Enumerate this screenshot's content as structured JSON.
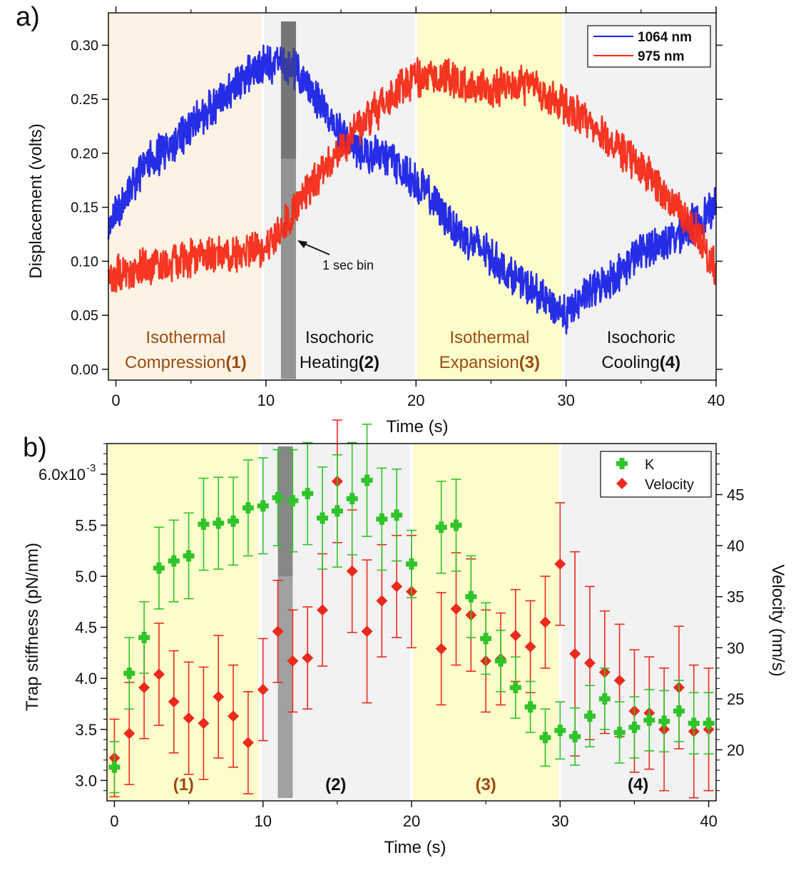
{
  "chart_data": [
    {
      "panel_label": "a)",
      "type": "line",
      "xlabel": "Time (s)",
      "ylabel": "Displacement (volts)",
      "xlim": [
        -0.5,
        40
      ],
      "ylim": [
        -0.01,
        0.33
      ],
      "xticks": [
        0,
        10,
        20,
        30,
        40
      ],
      "xtick_labels": [
        "0",
        "10",
        "20",
        "30",
        "40"
      ],
      "yticks": [
        0.0,
        0.05,
        0.1,
        0.15,
        0.2,
        0.25,
        0.3
      ],
      "ytick_labels": [
        "0.00",
        "0.05",
        "0.10",
        "0.15",
        "0.20",
        "0.25",
        "0.30"
      ],
      "phases": [
        {
          "x0": -0.5,
          "x1": 9.8,
          "color": "#fdf3e4",
          "line1": "Isothermal",
          "line2": "Compression",
          "num": "(1)",
          "text_color": "#9a4c12"
        },
        {
          "x0": 9.8,
          "x1": 20.0,
          "color": "#f2f2f2",
          "line1": "Isochoric",
          "line2": "Heating",
          "num": "(2)",
          "text_color": "#111111"
        },
        {
          "x0": 20.0,
          "x1": 29.8,
          "color": "#fdfccb",
          "line1": "Isothermal",
          "line2": "Expansion",
          "num": "(3)",
          "text_color": "#9a4c12"
        },
        {
          "x0": 29.8,
          "x1": 40.0,
          "color": "#f2f2f2",
          "line1": "Isochoric",
          "line2": "Cooling",
          "num": "(4)",
          "text_color": "#111111"
        }
      ],
      "bin": {
        "x0": 11.0,
        "x1": 12.0,
        "label": "1 sec bin"
      },
      "series": [
        {
          "name": "1064 nm",
          "color": "#1a22e6",
          "x": [
            -0.5,
            1,
            2,
            3,
            4,
            5,
            6,
            7,
            8,
            9,
            10,
            11,
            12,
            13,
            14,
            15,
            16,
            17,
            18,
            19,
            20,
            21,
            22,
            23,
            24,
            25,
            26,
            27,
            28,
            29,
            30,
            31,
            32,
            33,
            34,
            35,
            36,
            37,
            38,
            39,
            40
          ],
          "y": [
            0.13,
            0.17,
            0.19,
            0.2,
            0.21,
            0.225,
            0.24,
            0.25,
            0.265,
            0.275,
            0.285,
            0.282,
            0.278,
            0.258,
            0.238,
            0.218,
            0.205,
            0.2,
            0.198,
            0.185,
            0.175,
            0.158,
            0.14,
            0.125,
            0.115,
            0.105,
            0.09,
            0.08,
            0.07,
            0.06,
            0.05,
            0.065,
            0.075,
            0.085,
            0.095,
            0.11,
            0.115,
            0.12,
            0.13,
            0.14,
            0.15
          ]
        },
        {
          "name": "975 nm",
          "color": "#f52a17",
          "x": [
            -0.5,
            1,
            2,
            3,
            4,
            5,
            6,
            7,
            8,
            9,
            10,
            11,
            12,
            13,
            14,
            15,
            16,
            17,
            18,
            19,
            20,
            21,
            22,
            23,
            24,
            25,
            26,
            27,
            28,
            29,
            30,
            31,
            32,
            33,
            34,
            35,
            36,
            37,
            38,
            39,
            40
          ],
          "y": [
            0.085,
            0.09,
            0.095,
            0.098,
            0.1,
            0.103,
            0.105,
            0.107,
            0.108,
            0.11,
            0.113,
            0.13,
            0.148,
            0.17,
            0.19,
            0.205,
            0.22,
            0.235,
            0.248,
            0.26,
            0.27,
            0.272,
            0.27,
            0.265,
            0.262,
            0.26,
            0.262,
            0.265,
            0.26,
            0.25,
            0.245,
            0.232,
            0.22,
            0.21,
            0.198,
            0.185,
            0.172,
            0.155,
            0.14,
            0.12,
            0.09
          ]
        }
      ]
    },
    {
      "panel_label": "b)",
      "type": "scatter",
      "xlabel": "Time (s)",
      "ylabel": "Trap stiffness (pN/nm)",
      "y2label": "Velocity (nm/s)",
      "xlim": [
        -0.5,
        40.5
      ],
      "ylim": [
        2.8,
        6.3
      ],
      "y2lim": [
        15,
        50
      ],
      "xticks": [
        0,
        10,
        20,
        30,
        40
      ],
      "xtick_labels": [
        "0",
        "10",
        "20",
        "30",
        "40"
      ],
      "yticks": [
        3.0,
        3.5,
        4.0,
        4.5,
        5.0,
        5.5,
        6.0
      ],
      "ytick_labels": [
        "3.0",
        "3.5",
        "4.0",
        "4.5",
        "5.0",
        "5.5",
        "6.0x10"
      ],
      "y_exponent": "-3",
      "y2ticks": [
        20,
        25,
        30,
        35,
        40,
        45
      ],
      "y2tick_labels": [
        "20",
        "25",
        "30",
        "35",
        "40",
        "45"
      ],
      "phases": [
        {
          "x0": -0.5,
          "x1": 9.8,
          "color": "#fdfccb",
          "label": "(1)",
          "text_color": "#9a4c12"
        },
        {
          "x0": 9.8,
          "x1": 20.0,
          "color": "#f2f2f2",
          "label": "(2)",
          "text_color": "#111111"
        },
        {
          "x0": 20.0,
          "x1": 30.0,
          "color": "#fdfccb",
          "label": "(3)",
          "text_color": "#9a4c12"
        },
        {
          "x0": 30.0,
          "x1": 40.5,
          "color": "#f2f2f2",
          "label": "(4)",
          "text_color": "#111111"
        }
      ],
      "bin": {
        "x0": 11.0,
        "x1": 12.0
      },
      "series": [
        {
          "name": "K",
          "color": "#2fc42a",
          "axis": "left",
          "x": [
            0,
            1,
            2,
            3,
            4,
            5,
            6,
            7,
            8,
            9,
            10,
            11,
            12,
            13,
            14,
            15,
            16,
            17,
            18,
            19,
            20,
            22,
            23,
            24,
            25,
            26,
            27,
            28,
            29,
            30,
            31,
            32,
            33,
            34,
            35,
            36,
            37,
            38,
            39,
            40
          ],
          "y": [
            3.13,
            4.05,
            4.4,
            5.08,
            5.15,
            5.2,
            5.51,
            5.52,
            5.54,
            5.67,
            5.69,
            5.77,
            5.74,
            5.81,
            5.57,
            5.64,
            5.76,
            5.94,
            5.56,
            5.6,
            5.12,
            5.48,
            5.5,
            4.8,
            4.39,
            4.17,
            3.91,
            3.72,
            3.42,
            3.49,
            3.43,
            3.63,
            3.8,
            3.47,
            3.52,
            3.59,
            3.58,
            3.68,
            3.56,
            3.56
          ],
          "err": [
            0.25,
            0.35,
            0.35,
            0.4,
            0.4,
            0.42,
            0.45,
            0.45,
            0.43,
            0.47,
            0.47,
            0.47,
            0.5,
            0.5,
            0.5,
            0.55,
            0.55,
            0.55,
            0.5,
            0.45,
            0.33,
            0.45,
            0.45,
            0.4,
            0.35,
            0.3,
            0.3,
            0.25,
            0.28,
            0.28,
            0.28,
            0.3,
            0.3,
            0.3,
            0.3,
            0.3,
            0.3,
            0.3,
            0.3,
            0.3
          ]
        },
        {
          "name": "Velocity",
          "color": "#ec2a1c",
          "axis": "right",
          "x": [
            0,
            1,
            2,
            3,
            4,
            5,
            6,
            7,
            8,
            9,
            10,
            11,
            12,
            13,
            14,
            15,
            16,
            17,
            18,
            19,
            20,
            22,
            23,
            24,
            25,
            26,
            27,
            28,
            29,
            30,
            31,
            32,
            33,
            34,
            35,
            36,
            37,
            38,
            39,
            40
          ],
          "y": [
            19.2,
            21.6,
            26.1,
            27.4,
            24.7,
            23.1,
            22.6,
            25.2,
            23.3,
            20.7,
            25.9,
            31.6,
            28.7,
            29.0,
            33.7,
            46.3,
            37.5,
            31.6,
            34.6,
            36.0,
            35.5,
            29.9,
            33.8,
            33.2,
            28.7,
            28.9,
            31.2,
            30.1,
            32.5,
            38.2,
            29.4,
            28.5,
            27.6,
            26.8,
            23.8,
            23.6,
            22.0,
            26.1,
            21.8,
            22.0
          ],
          "err": [
            3.8,
            5,
            5,
            5,
            5,
            5.5,
            5.5,
            6,
            5,
            5,
            5,
            5,
            5,
            5,
            5.5,
            6,
            6,
            7,
            5.5,
            5,
            5.5,
            5.5,
            5.5,
            5.5,
            5,
            4.5,
            4.5,
            4.5,
            4.5,
            6,
            10,
            7.5,
            6,
            5.5,
            6,
            5.5,
            6,
            6,
            6.5,
            6
          ]
        }
      ]
    }
  ]
}
